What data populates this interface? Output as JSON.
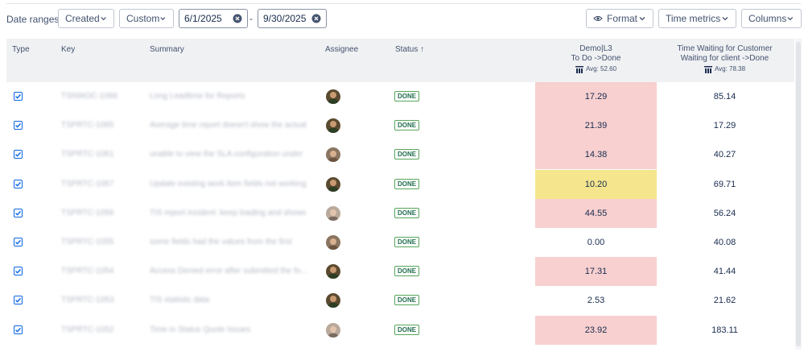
{
  "toolbar": {
    "date_ranges_label": "Date ranges:",
    "created_label": "Created",
    "custom_label": "Custom",
    "date_from": "6/1/2025",
    "date_separator": "-",
    "date_to": "9/30/2025",
    "format_label": "Format",
    "time_metrics_label": "Time metrics",
    "columns_label": "Columns"
  },
  "columns": {
    "type": "Type",
    "key": "Key",
    "summary": "Summary",
    "assignee": "Assignee",
    "status": "Status ↑",
    "metric1_line1": "Demo|L3",
    "metric1_line2": "To Do ->Done",
    "metric1_avg": "Avg: 52.60",
    "metric2_line1": "Time Waiting for Customer",
    "metric2_line2": "Waiting for client ->Done",
    "metric2_avg": "Avg: 78.38"
  },
  "colors": {
    "red_cell": "#f8d0d0",
    "yellow_cell": "#f5e68e",
    "badge_border": "#57a55a",
    "checkbox": "#0c66e4"
  },
  "rows": [
    {
      "key": "TSNWOC-1066",
      "summary": "Long Leadtime for Reports",
      "status": "DONE",
      "metric1": "17.29",
      "metric1_color": "red",
      "metric2": "85.14",
      "avatar": "a1"
    },
    {
      "key": "TSPRTC-1065",
      "summary": "Average time report doesn't show the actual",
      "status": "DONE",
      "metric1": "21.39",
      "metric1_color": "red",
      "metric2": "17.29",
      "avatar": "a1"
    },
    {
      "key": "TSPRTC-1061",
      "summary": "unable to view the SLA configuration under",
      "status": "DONE",
      "metric1": "14.38",
      "metric1_color": "red",
      "metric2": "40.27",
      "avatar": "a2"
    },
    {
      "key": "TSPRTC-1057",
      "summary": "Update existing work item fields not working",
      "status": "DONE",
      "metric1": "10.20",
      "metric1_color": "yellow",
      "metric2": "69.71",
      "avatar": "a1"
    },
    {
      "key": "TSPRTC-1056",
      "summary": "TIS report incident: keep loading and shows",
      "status": "DONE",
      "metric1": "44.55",
      "metric1_color": "red",
      "metric2": "56.24",
      "avatar": "a3"
    },
    {
      "key": "TSPRTC-1055",
      "summary": "some fields had the values from the first",
      "status": "DONE",
      "metric1": "0.00",
      "metric1_color": "none",
      "metric2": "40.08",
      "avatar": "a2"
    },
    {
      "key": "TSPRTC-1054",
      "summary": "Access Denied error after submitted the fo...",
      "status": "DONE",
      "metric1": "17.31",
      "metric1_color": "red",
      "metric2": "41.44",
      "avatar": "a1"
    },
    {
      "key": "TSPRTC-1053",
      "summary": "TIS statistic data",
      "status": "DONE",
      "metric1": "2.53",
      "metric1_color": "none",
      "metric2": "21.62",
      "avatar": "a1"
    },
    {
      "key": "TSPRTC-1052",
      "summary": "Time in Status Quote Issues",
      "status": "DONE",
      "metric1": "23.92",
      "metric1_color": "red",
      "metric2": "183.11",
      "avatar": "a3"
    }
  ]
}
